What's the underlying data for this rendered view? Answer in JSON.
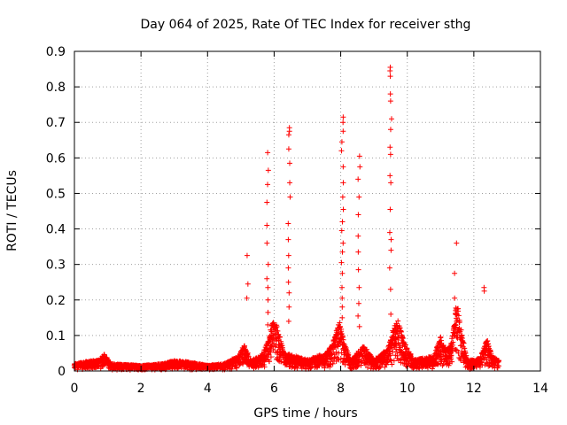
{
  "chart_data": {
    "type": "scatter",
    "title": "Day 064 of 2025, Rate Of TEC Index for receiver sthg",
    "xlabel": "GPS time / hours",
    "ylabel": "ROTI / TECUs",
    "xlim": [
      0,
      14
    ],
    "ylim": [
      0,
      0.9
    ],
    "xticks": [
      "0",
      "2",
      "4",
      "6",
      "8",
      "10",
      "12",
      "14"
    ],
    "yticks": [
      "0",
      "0.1",
      "0.2",
      "0.3",
      "0.4",
      "0.5",
      "0.6",
      "0.7",
      "0.8",
      "0.9"
    ],
    "grid": true,
    "marker": "+",
    "color": "#ff0000",
    "baseline": [
      [
        0.0,
        0.02
      ],
      [
        0.3,
        0.025
      ],
      [
        0.7,
        0.03
      ],
      [
        0.9,
        0.045
      ],
      [
        1.1,
        0.02
      ],
      [
        2.0,
        0.015
      ],
      [
        2.7,
        0.02
      ],
      [
        3.0,
        0.03
      ],
      [
        3.4,
        0.025
      ],
      [
        4.0,
        0.015
      ],
      [
        4.5,
        0.02
      ],
      [
        4.9,
        0.04
      ],
      [
        5.1,
        0.07
      ],
      [
        5.3,
        0.03
      ],
      [
        5.6,
        0.04
      ],
      [
        5.85,
        0.09
      ],
      [
        5.95,
        0.14
      ],
      [
        6.1,
        0.12
      ],
      [
        6.3,
        0.05
      ],
      [
        7.0,
        0.03
      ],
      [
        7.6,
        0.05
      ],
      [
        7.85,
        0.1
      ],
      [
        7.95,
        0.14
      ],
      [
        8.1,
        0.08
      ],
      [
        8.3,
        0.03
      ],
      [
        8.7,
        0.07
      ],
      [
        9.0,
        0.03
      ],
      [
        9.4,
        0.06
      ],
      [
        9.6,
        0.12
      ],
      [
        9.75,
        0.14
      ],
      [
        9.9,
        0.08
      ],
      [
        10.2,
        0.03
      ],
      [
        10.8,
        0.04
      ],
      [
        11.0,
        0.1
      ],
      [
        11.15,
        0.06
      ],
      [
        11.3,
        0.07
      ],
      [
        11.5,
        0.2
      ],
      [
        11.6,
        0.12
      ],
      [
        11.8,
        0.03
      ],
      [
        12.0,
        0.03
      ],
      [
        12.2,
        0.04
      ],
      [
        12.4,
        0.09
      ],
      [
        12.55,
        0.04
      ],
      [
        12.75,
        0.03
      ]
    ],
    "spikes": [
      {
        "x": 5.2,
        "y": [
          0.205,
          0.245,
          0.325
        ]
      },
      {
        "x": 5.8,
        "y": [
          0.13,
          0.165,
          0.2,
          0.235,
          0.26,
          0.3,
          0.36,
          0.41,
          0.475,
          0.525,
          0.565,
          0.615
        ]
      },
      {
        "x": 6.45,
        "y": [
          0.14,
          0.18,
          0.22,
          0.25,
          0.29,
          0.325,
          0.37,
          0.415,
          0.49,
          0.53,
          0.585,
          0.625,
          0.665,
          0.675,
          0.685
        ]
      },
      {
        "x": 8.05,
        "y": [
          0.15,
          0.18,
          0.205,
          0.235,
          0.275,
          0.305,
          0.335,
          0.36,
          0.395,
          0.42,
          0.455,
          0.49,
          0.53,
          0.575,
          0.62,
          0.645,
          0.675,
          0.7,
          0.715
        ]
      },
      {
        "x": 8.55,
        "y": [
          0.125,
          0.155,
          0.19,
          0.235,
          0.285,
          0.335,
          0.38,
          0.44,
          0.49,
          0.54,
          0.575,
          0.605
        ]
      },
      {
        "x": 9.5,
        "y": [
          0.16,
          0.23,
          0.29,
          0.34,
          0.37,
          0.39,
          0.455,
          0.53,
          0.55,
          0.61,
          0.63,
          0.68,
          0.71,
          0.76,
          0.78,
          0.83,
          0.845,
          0.855
        ]
      },
      {
        "x": 11.45,
        "y": [
          0.14,
          0.17,
          0.205,
          0.275,
          0.36
        ]
      },
      {
        "x": 12.3,
        "y": [
          0.225,
          0.235
        ]
      }
    ]
  }
}
